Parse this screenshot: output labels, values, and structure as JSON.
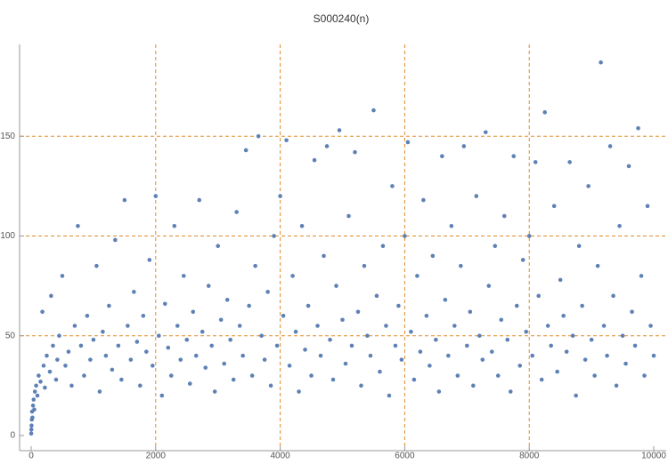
{
  "chart_data": {
    "type": "scatter",
    "title": "S000240(n)",
    "x": [
      1,
      3,
      6,
      10,
      15,
      20,
      30,
      40,
      50,
      60,
      80,
      100,
      120,
      150,
      180,
      200,
      220,
      250,
      300,
      320,
      350,
      400,
      420,
      450,
      500,
      550,
      600,
      650,
      700,
      750,
      800,
      850,
      900,
      950,
      1000,
      1050,
      1100,
      1150,
      1200,
      1250,
      1300,
      1350,
      1400,
      1450,
      1500,
      1550,
      1600,
      1650,
      1700,
      1750,
      1800,
      1850,
      1900,
      1950,
      2000,
      2050,
      2100,
      2150,
      2200,
      2250,
      2300,
      2350,
      2400,
      2450,
      2500,
      2550,
      2600,
      2650,
      2700,
      2750,
      2800,
      2850,
      2900,
      2950,
      3000,
      3050,
      3100,
      3150,
      3200,
      3250,
      3300,
      3350,
      3400,
      3450,
      3500,
      3550,
      3600,
      3650,
      3700,
      3750,
      3800,
      3850,
      3900,
      3950,
      4000,
      4050,
      4100,
      4150,
      4200,
      4250,
      4300,
      4350,
      4400,
      4450,
      4500,
      4550,
      4600,
      4650,
      4700,
      4750,
      4800,
      4850,
      4900,
      4950,
      5000,
      5050,
      5100,
      5150,
      5200,
      5250,
      5300,
      5350,
      5400,
      5450,
      5500,
      5550,
      5600,
      5650,
      5700,
      5750,
      5800,
      5850,
      5900,
      5950,
      6000,
      6050,
      6100,
      6150,
      6200,
      6250,
      6300,
      6350,
      6400,
      6450,
      6500,
      6550,
      6600,
      6650,
      6700,
      6750,
      6800,
      6850,
      6900,
      6950,
      7000,
      7050,
      7100,
      7150,
      7200,
      7250,
      7300,
      7350,
      7400,
      7450,
      7500,
      7550,
      7600,
      7650,
      7700,
      7750,
      7800,
      7850,
      7900,
      7950,
      8000,
      8050,
      8100,
      8150,
      8200,
      8250,
      8300,
      8350,
      8400,
      8450,
      8500,
      8550,
      8600,
      8650,
      8700,
      8750,
      8800,
      8850,
      8900,
      8950,
      9000,
      9050,
      9100,
      9150,
      9200,
      9250,
      9300,
      9350,
      9400,
      9450,
      9500,
      9550,
      9600,
      9650,
      9700,
      9750,
      9800,
      9850,
      9900,
      9950,
      10000
    ],
    "series": [
      {
        "color": "#5e81b5",
        "values": [
          1,
          3,
          5,
          8,
          12,
          9,
          15,
          18,
          13,
          22,
          25,
          20,
          30,
          27,
          62,
          35,
          24,
          40,
          32,
          70,
          45,
          28,
          38,
          50,
          80,
          35,
          42,
          25,
          55,
          105,
          45,
          30,
          60,
          38,
          48,
          85,
          22,
          52,
          40,
          65,
          33,
          98,
          45,
          28,
          118,
          55,
          38,
          72,
          47,
          25,
          60,
          42,
          88,
          35,
          120,
          50,
          20,
          66,
          44,
          30,
          105,
          55,
          38,
          80,
          48,
          26,
          62,
          40,
          118,
          52,
          34,
          75,
          45,
          22,
          95,
          58,
          36,
          68,
          48,
          28,
          112,
          55,
          40,
          143,
          65,
          30,
          85,
          150,
          50,
          38,
          72,
          25,
          100,
          45,
          120,
          60,
          148,
          35,
          80,
          52,
          22,
          105,
          43,
          65,
          30,
          138,
          55,
          40,
          90,
          145,
          48,
          28,
          75,
          153,
          58,
          36,
          110,
          45,
          142,
          62,
          25,
          85,
          50,
          40,
          163,
          70,
          32,
          95,
          55,
          20,
          125,
          45,
          65,
          38,
          100,
          147,
          52,
          28,
          80,
          42,
          118,
          60,
          35,
          90,
          48,
          22,
          140,
          68,
          40,
          105,
          55,
          30,
          85,
          145,
          45,
          62,
          25,
          120,
          50,
          38,
          152,
          75,
          42,
          95,
          30,
          58,
          110,
          48,
          22,
          140,
          65,
          35,
          88,
          52,
          100,
          40,
          137,
          70,
          28,
          162,
          55,
          45,
          115,
          32,
          78,
          60,
          42,
          137,
          50,
          20,
          95,
          65,
          38,
          125,
          48,
          30,
          85,
          187,
          55,
          40,
          145,
          70,
          25,
          105,
          50,
          36,
          135,
          62,
          45,
          154,
          80,
          30,
          115,
          55,
          40
        ]
      }
    ],
    "xlim": [
      -186,
      10200
    ],
    "ylim": [
      -7.6,
      196
    ],
    "xticks": [
      0,
      2000,
      4000,
      6000,
      8000,
      10000
    ],
    "yticks": [
      0,
      50,
      100,
      150
    ],
    "xgrid": [
      2000,
      4000,
      6000,
      8000
    ],
    "ygrid": [
      50,
      100,
      150
    ],
    "grid_color": "#e08a2c"
  }
}
